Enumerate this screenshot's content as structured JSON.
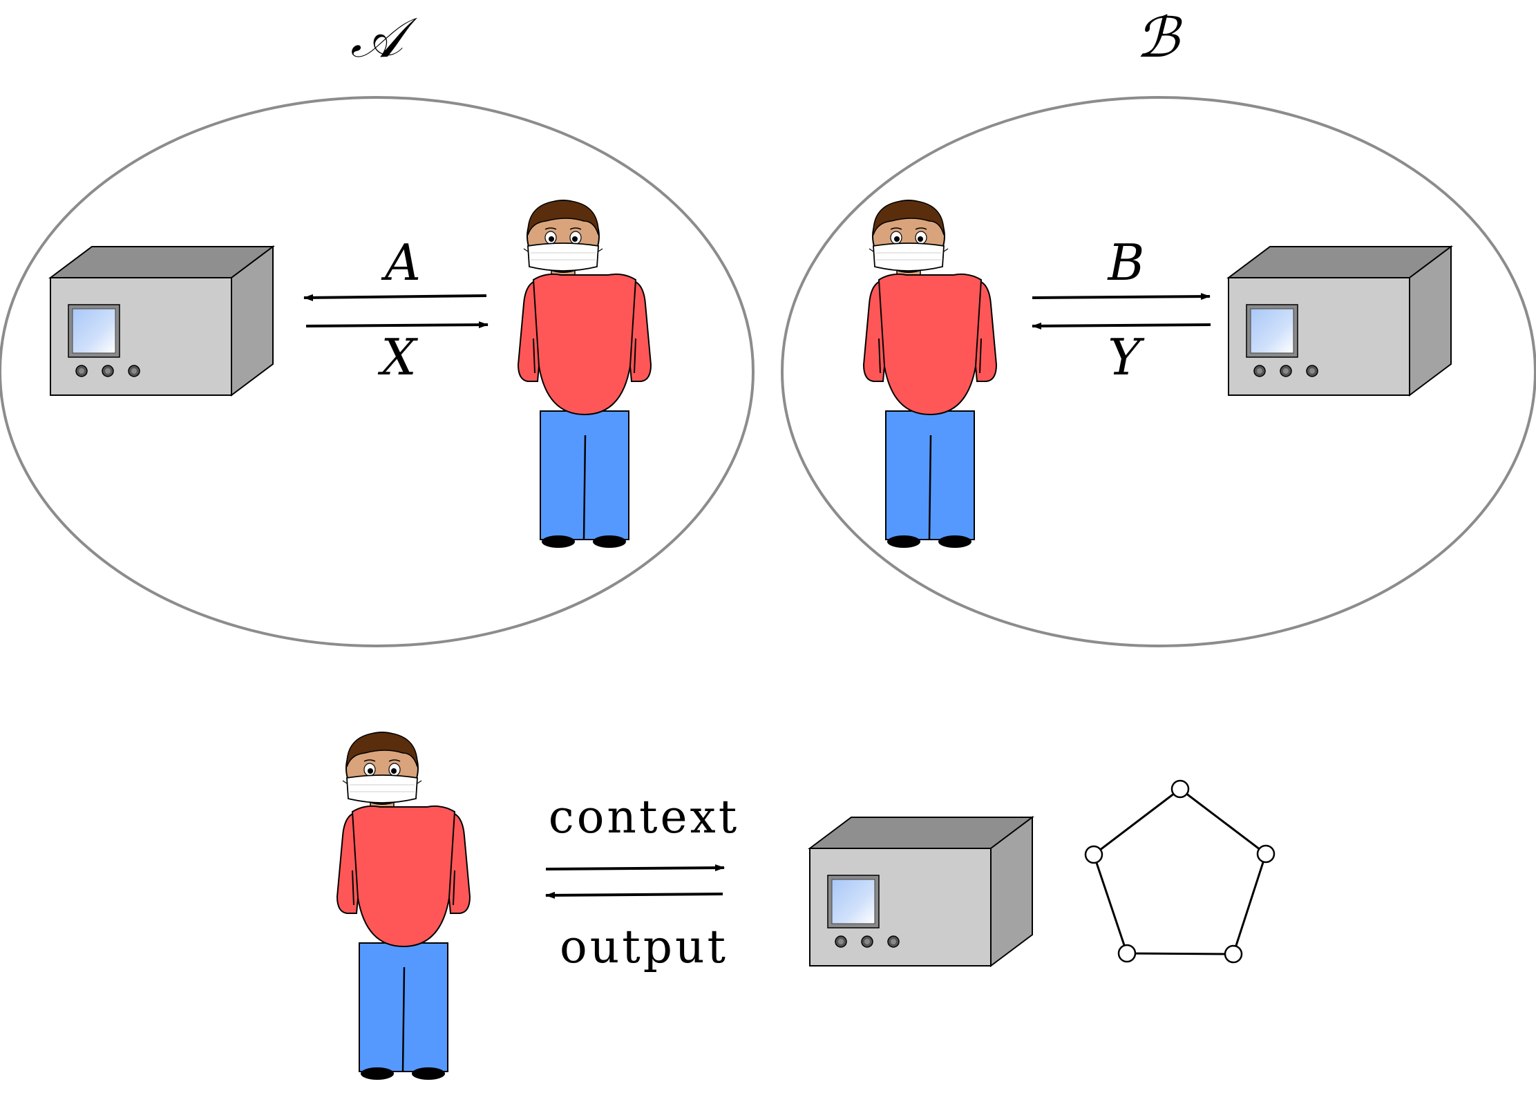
{
  "labels": {
    "party_a": "𝒜",
    "party_b": "ℬ",
    "input_a": "A",
    "output_x": "X",
    "input_b": "B",
    "output_y": "Y",
    "context": "context",
    "output": "output"
  },
  "colors": {
    "ellipse_stroke": "#8c8c8c",
    "shirt": "#ff5757",
    "pants": "#5599ff",
    "skin": "#d9a47c",
    "hair": "#5a2d0c",
    "mask": "#ffffff",
    "box_front": "#cccccc",
    "box_top": "#8f8f8f",
    "box_side": "#a3a3a3",
    "screen": "#b7d4fb",
    "graph_stroke": "#000000"
  },
  "icons": [
    "person-icon",
    "device-icon",
    "pentagon-graph-icon"
  ]
}
